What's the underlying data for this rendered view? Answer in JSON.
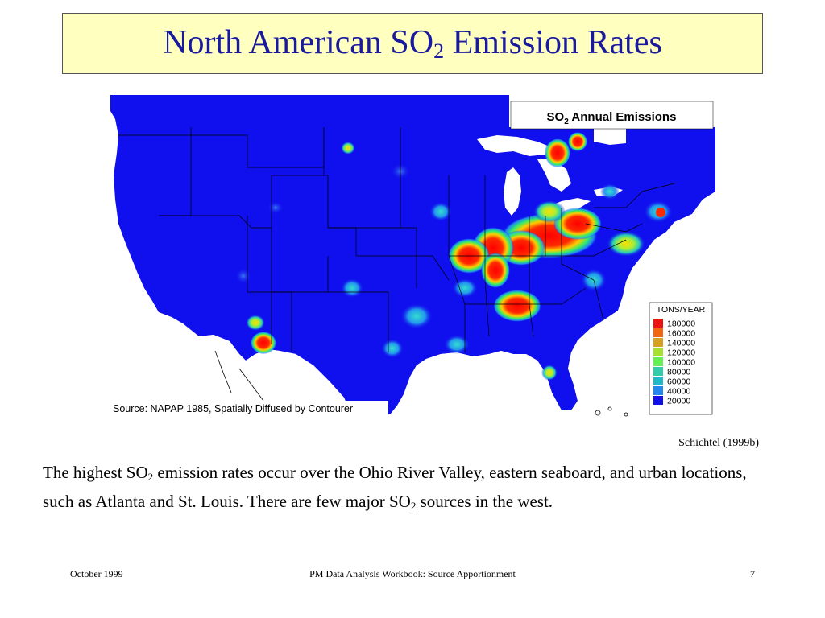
{
  "slide": {
    "title_main": "North American SO",
    "title_sub": "2",
    "title_rest": " Emission Rates",
    "credit": "Schichtel (1999b)",
    "body": {
      "part1": "The highest SO",
      "sub1": "2",
      "part2": " emission rates occur over the Ohio River Valley, eastern seaboard, and urban locations, such as Atlanta and St. Louis.  There are few major SO",
      "sub2": "2",
      "part3": " sources in the west."
    },
    "footer": {
      "date": "October 1999",
      "workbook": "PM Data Analysis Workbook: Source Apportionment",
      "page": "7"
    }
  },
  "map": {
    "caption_main": "SO",
    "caption_sub": "2",
    "caption_rest": " Annual Emissions",
    "source": "Source: NAPAP 1985, Spatially Diffused by Contourer",
    "legend": {
      "title": "TONS/YEAR",
      "items": [
        {
          "label": "180000",
          "color": "#ee1111"
        },
        {
          "label": "160000",
          "color": "#f26611"
        },
        {
          "label": "140000",
          "color": "#d8a020"
        },
        {
          "label": "120000",
          "color": "#a8e030"
        },
        {
          "label": "100000",
          "color": "#66ee55"
        },
        {
          "label": "80000",
          "color": "#33ccaa"
        },
        {
          "label": "60000",
          "color": "#22b8c8"
        },
        {
          "label": "40000",
          "color": "#2288ee"
        },
        {
          "label": "20000",
          "color": "#1010ee"
        }
      ]
    },
    "colors": {
      "land": "#1010ee",
      "water": "#ffffff",
      "border": "#000000"
    }
  }
}
